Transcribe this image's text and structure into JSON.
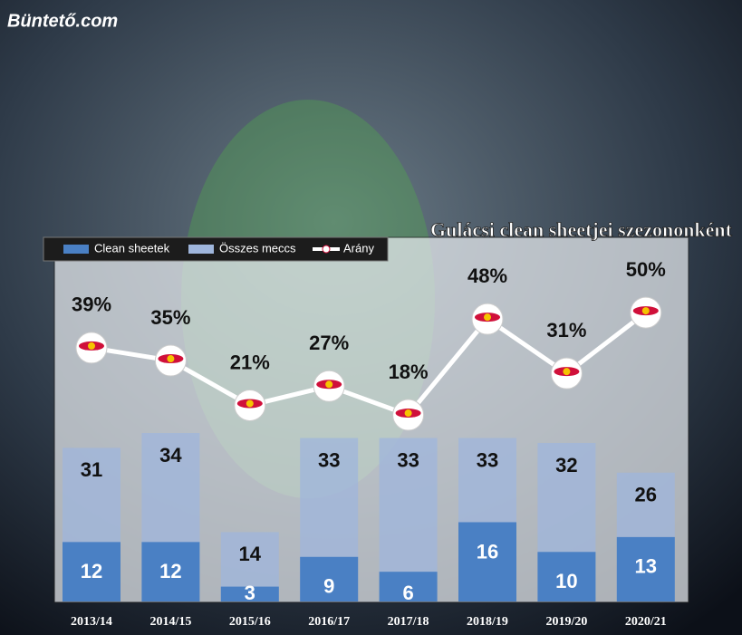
{
  "brand": "Büntető.com",
  "chart_data": {
    "type": "bar-line",
    "title": "Gulácsi clean sheetjei szezononként",
    "categories": [
      "2013/14",
      "2014/15",
      "2015/16",
      "2016/17",
      "2017/18",
      "2018/19",
      "2019/20",
      "2020/21"
    ],
    "series": [
      {
        "name": "Clean sheetek",
        "color": "#4a80c4",
        "values": [
          12,
          12,
          3,
          9,
          6,
          16,
          10,
          13
        ]
      },
      {
        "name": "Összes meccs",
        "color": "#9fb6dc",
        "values": [
          31,
          34,
          14,
          33,
          33,
          33,
          32,
          26
        ]
      },
      {
        "name": "Arány",
        "color": "#ffffff",
        "kind": "line",
        "values": [
          39,
          35,
          21,
          27,
          18,
          48,
          31,
          50
        ],
        "value_labels": [
          "39%",
          "35%",
          "21%",
          "27%",
          "18%",
          "48%",
          "31%",
          "50%"
        ]
      }
    ]
  }
}
